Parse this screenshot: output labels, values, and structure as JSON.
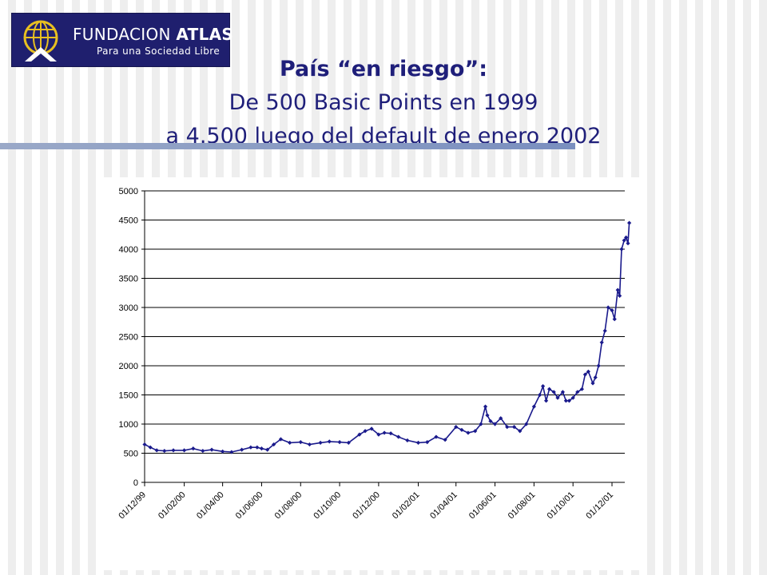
{
  "header": {
    "logo_name_light": "FUNDACION",
    "logo_name_bold": "ATLAS",
    "logo_tagline": "Para una Sociedad Libre",
    "title_line1": "País “en riesgo”:",
    "title_line2": "De 500 Basic Points en 1999",
    "title_line3": "a 4.500 luego del default de enero 2002"
  },
  "colors": {
    "logo_bg": "#1f1f6e",
    "title": "#1f1f7a",
    "series": "#1a1a8c"
  },
  "chart_data": {
    "type": "line",
    "title": "",
    "xlabel": "",
    "ylabel": "",
    "ylim": [
      0,
      5000
    ],
    "yticks": [
      "0",
      "500",
      "1000",
      "1500",
      "2000",
      "2500",
      "3000",
      "3500",
      "4000",
      "4500",
      "5000"
    ],
    "x_tick_labels": [
      "01/12/99",
      "01/02/00",
      "01/04/00",
      "01/06/00",
      "01/08/00",
      "01/10/00",
      "01/12/00",
      "01/02/01",
      "01/04/01",
      "01/06/01",
      "01/08/01",
      "01/10/01",
      "01/12/01"
    ],
    "grid": "horizontal",
    "legend": "none",
    "series": [
      {
        "x": [
          "1999-12-01",
          "1999-12-10",
          "1999-12-20",
          "2000-01-01",
          "2000-01-15",
          "2000-02-01",
          "2000-02-15",
          "2000-03-01",
          "2000-03-15",
          "2000-04-01",
          "2000-04-15",
          "2000-05-01",
          "2000-05-15",
          "2000-05-25",
          "2000-06-01",
          "2000-06-10",
          "2000-06-20",
          "2000-07-01",
          "2000-07-15",
          "2000-08-01",
          "2000-08-15",
          "2000-09-01",
          "2000-09-15",
          "2000-10-01",
          "2000-10-15",
          "2000-11-01",
          "2000-11-10",
          "2000-11-20",
          "2000-12-01",
          "2000-12-10",
          "2000-12-20",
          "2001-01-01",
          "2001-01-15",
          "2001-02-01",
          "2001-02-15",
          "2001-03-01",
          "2001-03-15",
          "2001-04-01",
          "2001-04-10",
          "2001-04-20",
          "2001-05-01",
          "2001-05-10",
          "2001-05-17",
          "2001-05-20",
          "2001-05-25",
          "2001-06-01",
          "2001-06-10",
          "2001-06-20",
          "2001-07-01",
          "2001-07-10",
          "2001-07-20",
          "2001-08-01",
          "2001-08-10",
          "2001-08-15",
          "2001-08-20",
          "2001-08-25",
          "2001-09-01",
          "2001-09-07",
          "2001-09-15",
          "2001-09-20",
          "2001-09-25",
          "2001-10-01",
          "2001-10-08",
          "2001-10-15",
          "2001-10-20",
          "2001-10-25",
          "2001-11-01",
          "2001-11-05",
          "2001-11-10",
          "2001-11-15",
          "2001-11-20",
          "2001-11-25",
          "2001-12-01",
          "2001-12-05",
          "2001-12-10",
          "2001-12-13",
          "2001-12-16",
          "2001-12-20",
          "2001-12-23",
          "2001-12-26",
          "2001-12-28"
        ],
        "values": [
          650,
          600,
          550,
          540,
          550,
          550,
          580,
          540,
          560,
          530,
          520,
          560,
          600,
          600,
          580,
          560,
          650,
          740,
          680,
          690,
          650,
          680,
          700,
          690,
          680,
          820,
          880,
          920,
          820,
          850,
          840,
          780,
          720,
          680,
          690,
          780,
          730,
          950,
          900,
          850,
          880,
          1000,
          1300,
          1150,
          1050,
          1000,
          1100,
          950,
          950,
          880,
          1000,
          1300,
          1500,
          1650,
          1400,
          1600,
          1550,
          1450,
          1550,
          1400,
          1400,
          1450,
          1550,
          1600,
          1850,
          1900,
          1700,
          1800,
          2000,
          2400,
          2600,
          3000,
          2950,
          2800,
          3300,
          3200,
          4000,
          4150,
          4200,
          4100,
          4450
        ]
      }
    ]
  }
}
